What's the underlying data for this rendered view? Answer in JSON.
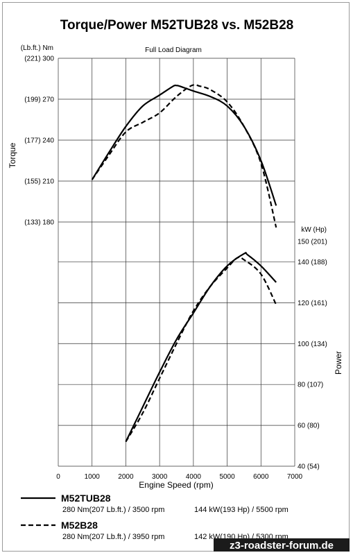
{
  "chart_data": {
    "type": "line",
    "title": "Torque/Power  M52TUB28 vs. M52B28",
    "subtitle": "Full Load Diagram",
    "xlabel": "Engine Speed (rpm)",
    "xlim": [
      0,
      7000
    ],
    "x_ticks": [
      "0",
      "1000",
      "2000",
      "3000",
      "4000",
      "5000",
      "6000",
      "7000"
    ],
    "torque_axis": {
      "label": "Torque",
      "unit_label": "(Lb.ft.) Nm",
      "range": [
        180,
        300
      ],
      "ticks": [
        {
          "value": 300,
          "label": "(221) 300"
        },
        {
          "value": 270,
          "label": "(199) 270"
        },
        {
          "value": 240,
          "label": "(177) 240"
        },
        {
          "value": 210,
          "label": "(155) 210"
        },
        {
          "value": 180,
          "label": "(133) 180"
        }
      ]
    },
    "power_axis": {
      "label": "Power",
      "unit_label": "kW  (Hp)",
      "range": [
        40,
        150
      ],
      "ticks": [
        {
          "value": 150,
          "label": "150 (201)"
        },
        {
          "value": 140,
          "label": "140 (188)"
        },
        {
          "value": 120,
          "label": "120 (161)"
        },
        {
          "value": 100,
          "label": "100 (134)"
        },
        {
          "value": 80,
          "label": "80 (107)"
        },
        {
          "value": 60,
          "label": "60 (80)"
        },
        {
          "value": 40,
          "label": "40 (54)"
        }
      ]
    },
    "grid": true,
    "series": [
      {
        "name": "M52TUB28",
        "style": "solid",
        "torque": {
          "x": [
            1000,
            1500,
            2000,
            2500,
            3000,
            3400,
            3500,
            3600,
            4000,
            4500,
            5000,
            5500,
            6000,
            6450
          ],
          "y": [
            211,
            231,
            250,
            265,
            273,
            279.5,
            280,
            279.5,
            276,
            272,
            265,
            250,
            225,
            192
          ]
        },
        "power": {
          "x": [
            2000,
            2500,
            3000,
            3500,
            4000,
            4500,
            5000,
            5500,
            5600,
            6000,
            6450
          ],
          "y": [
            52,
            69,
            86,
            102,
            115,
            128,
            138,
            144,
            143.5,
            138,
            130
          ]
        }
      },
      {
        "name": "M52B28",
        "style": "dashed",
        "torque": {
          "x": [
            1000,
            1500,
            2000,
            2500,
            3000,
            3500,
            3950,
            4200,
            4500,
            5000,
            5500,
            6000,
            6450
          ],
          "y": [
            211,
            229,
            246,
            253,
            260,
            272,
            280,
            279.5,
            277,
            268,
            250,
            223,
            176
          ]
        },
        "power": {
          "x": [
            2000,
            2500,
            3000,
            3500,
            4000,
            4500,
            5000,
            5300,
            5500,
            6000,
            6450
          ],
          "y": [
            52,
            66,
            83,
            100,
            116,
            128,
            137,
            142,
            141,
            134,
            119
          ]
        }
      }
    ]
  },
  "legend": {
    "items": [
      {
        "name": "M52TUB28",
        "spec_torque": "280 Nm(207 Lb.ft.) / 3500 rpm",
        "spec_power": "144 kW(193 Hp) / 5500 rpm"
      },
      {
        "name": "M52B28",
        "spec_torque": "280 Nm(207 Lb.ft.) / 3950 rpm",
        "spec_power": "142 kW(190 Hp) / 5300 rpm"
      }
    ]
  },
  "watermark": "z3-roadster-forum.de"
}
